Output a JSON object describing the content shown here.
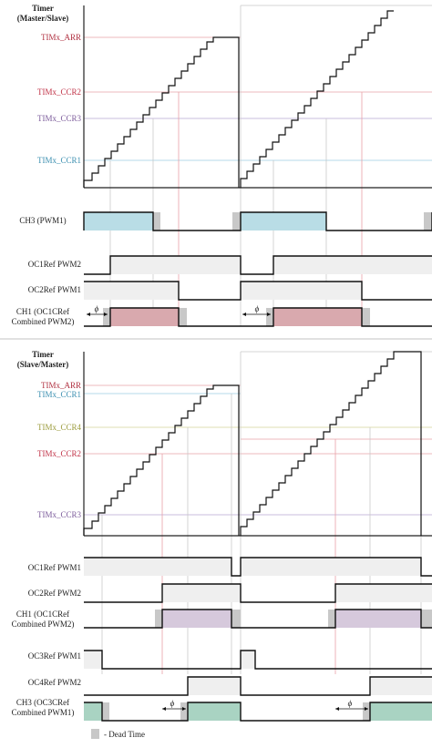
{
  "top_panel": {
    "timer_label_1": "Timer",
    "timer_label_2": "(Master/Slave)",
    "levels": {
      "arr": "TIMx_ARR",
      "ccr2": "TIMx_CCR2",
      "ccr3": "TIMx_CCR3",
      "ccr1": "TIMx_CCR1"
    },
    "signals": {
      "ch3_bold": "CH3",
      "ch3_rest": " (PWM1)",
      "oc1ref": "OC1Ref PWM2",
      "oc2ref": "OC2Ref PWM1",
      "ch1_bold": "CH1",
      "ch1_rest": " (OC1CRef",
      "ch1_line2": "Combined PWM2)"
    },
    "phase_symbol": "ϕ"
  },
  "bottom_panel": {
    "timer_label_1": "Timer",
    "timer_label_2": "(Slave/Master)",
    "levels": {
      "arr": "TIMx_ARR",
      "ccr1": "TIMx_CCR1",
      "ccr4": "TIMx_CCR4",
      "ccr2": "TIMx_CCR2",
      "ccr3": "TIMx_CCR3"
    },
    "signals": {
      "oc1ref": "OC1Ref PWM1",
      "oc2ref": "OC2Ref PWM2",
      "ch1_bold": "CH1",
      "ch1_rest": " (OC1CRef",
      "ch1_line2": "Combined PWM2)",
      "oc3ref": "OC3Ref PWM1",
      "oc4ref": "OC4Ref PWM2",
      "ch3_bold": "CH3",
      "ch3_rest": " (OC3CRef",
      "ch3_line2": "Combined PWM1)"
    },
    "phase_symbol": "ϕ"
  },
  "legend": {
    "dead_time": "- Dead Time"
  },
  "colors": {
    "blue_fill": "#b9dde6",
    "rose_fill": "#d9a9ae",
    "lavender_fill": "#d6c9dc",
    "green_fill": "#a9d3c2",
    "gray_fill": "#efefef",
    "dead_time": "#c8c8c8"
  }
}
